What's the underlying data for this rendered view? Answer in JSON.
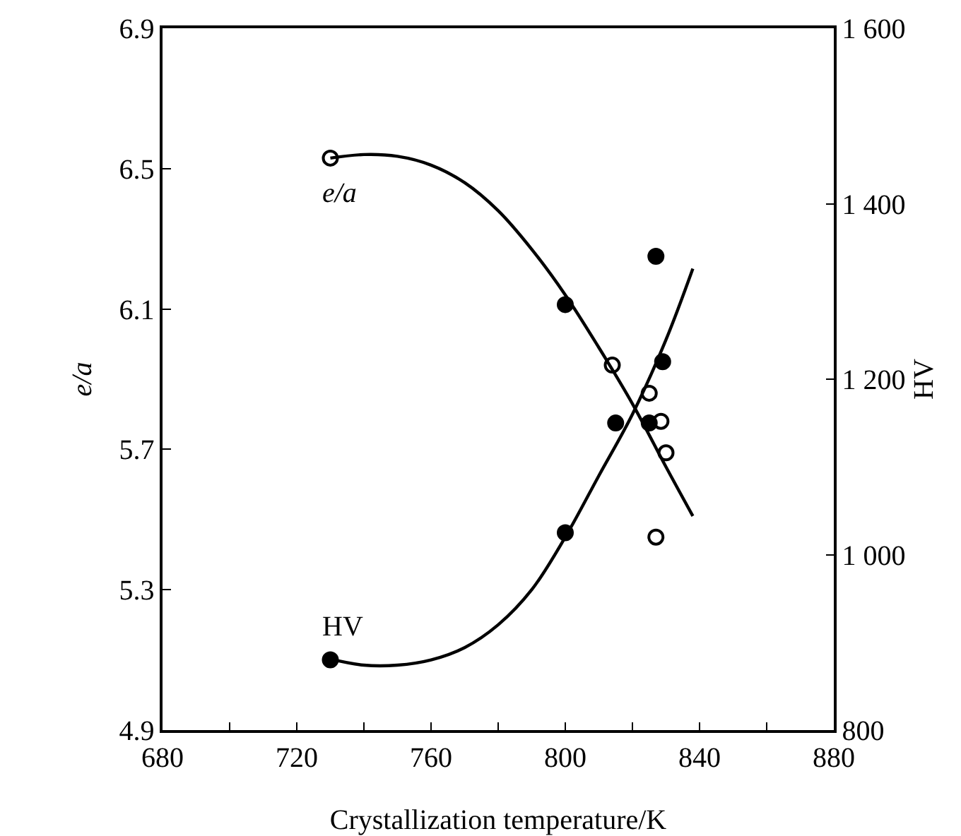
{
  "chart_data": {
    "type": "scatter",
    "xlabel": "Crystallization temperature/K",
    "ylabel": "e/a",
    "y2label": "HV",
    "xlim": [
      680,
      880
    ],
    "xticks": [
      680,
      {
        "value": 700,
        "label": null
      },
      720,
      {
        "value": 740,
        "label": null
      },
      760,
      {
        "value": 780,
        "label": null
      },
      800,
      {
        "value": 820,
        "label": null
      },
      840,
      {
        "value": 860,
        "label": null
      },
      880
    ],
    "ylim": [
      4.9,
      6.9
    ],
    "yticks": [
      4.9,
      5.3,
      5.7,
      6.1,
      6.5,
      6.9
    ],
    "y2lim": [
      800,
      1600
    ],
    "y2ticks": [
      {
        "value": 800,
        "label": "800"
      },
      {
        "value": 1000,
        "label": "1 000"
      },
      {
        "value": 1200,
        "label": "1 200"
      },
      {
        "value": 1400,
        "label": "1 400"
      },
      {
        "value": 1600,
        "label": "1 600"
      }
    ],
    "grid": false,
    "legend": false,
    "series": [
      {
        "name": "e/a",
        "marker": "circle-open",
        "color": "#000000",
        "x": [
          730,
          814,
          825,
          828.5,
          830,
          827
        ],
        "values": [
          6.53,
          5.94,
          5.86,
          5.78,
          5.69,
          5.45
        ]
      },
      {
        "type": "line",
        "marker": "none",
        "color": "#000000",
        "x": [
          730,
          740,
          750,
          760,
          770,
          780,
          790,
          800,
          810,
          820,
          830,
          838
        ],
        "values": [
          6.53,
          6.54,
          6.535,
          6.51,
          6.46,
          6.38,
          6.27,
          6.14,
          5.99,
          5.83,
          5.65,
          5.51
        ]
      },
      {
        "name": "HV",
        "marker": "circle",
        "axis": "y2",
        "color": "#000000",
        "x": [
          730,
          800,
          827,
          829,
          815,
          825,
          800
        ],
        "values": [
          880,
          1285,
          1340,
          1220,
          1150,
          1150,
          1025
        ]
      },
      {
        "type": "line",
        "marker": "none",
        "axis": "y2",
        "color": "#000000",
        "x": [
          730,
          740,
          750,
          760,
          770,
          780,
          790,
          800,
          810,
          820,
          830,
          838
        ],
        "values": [
          881,
          874,
          874,
          880,
          894,
          920,
          960,
          1020,
          1090,
          1160,
          1245,
          1326
        ]
      }
    ]
  }
}
